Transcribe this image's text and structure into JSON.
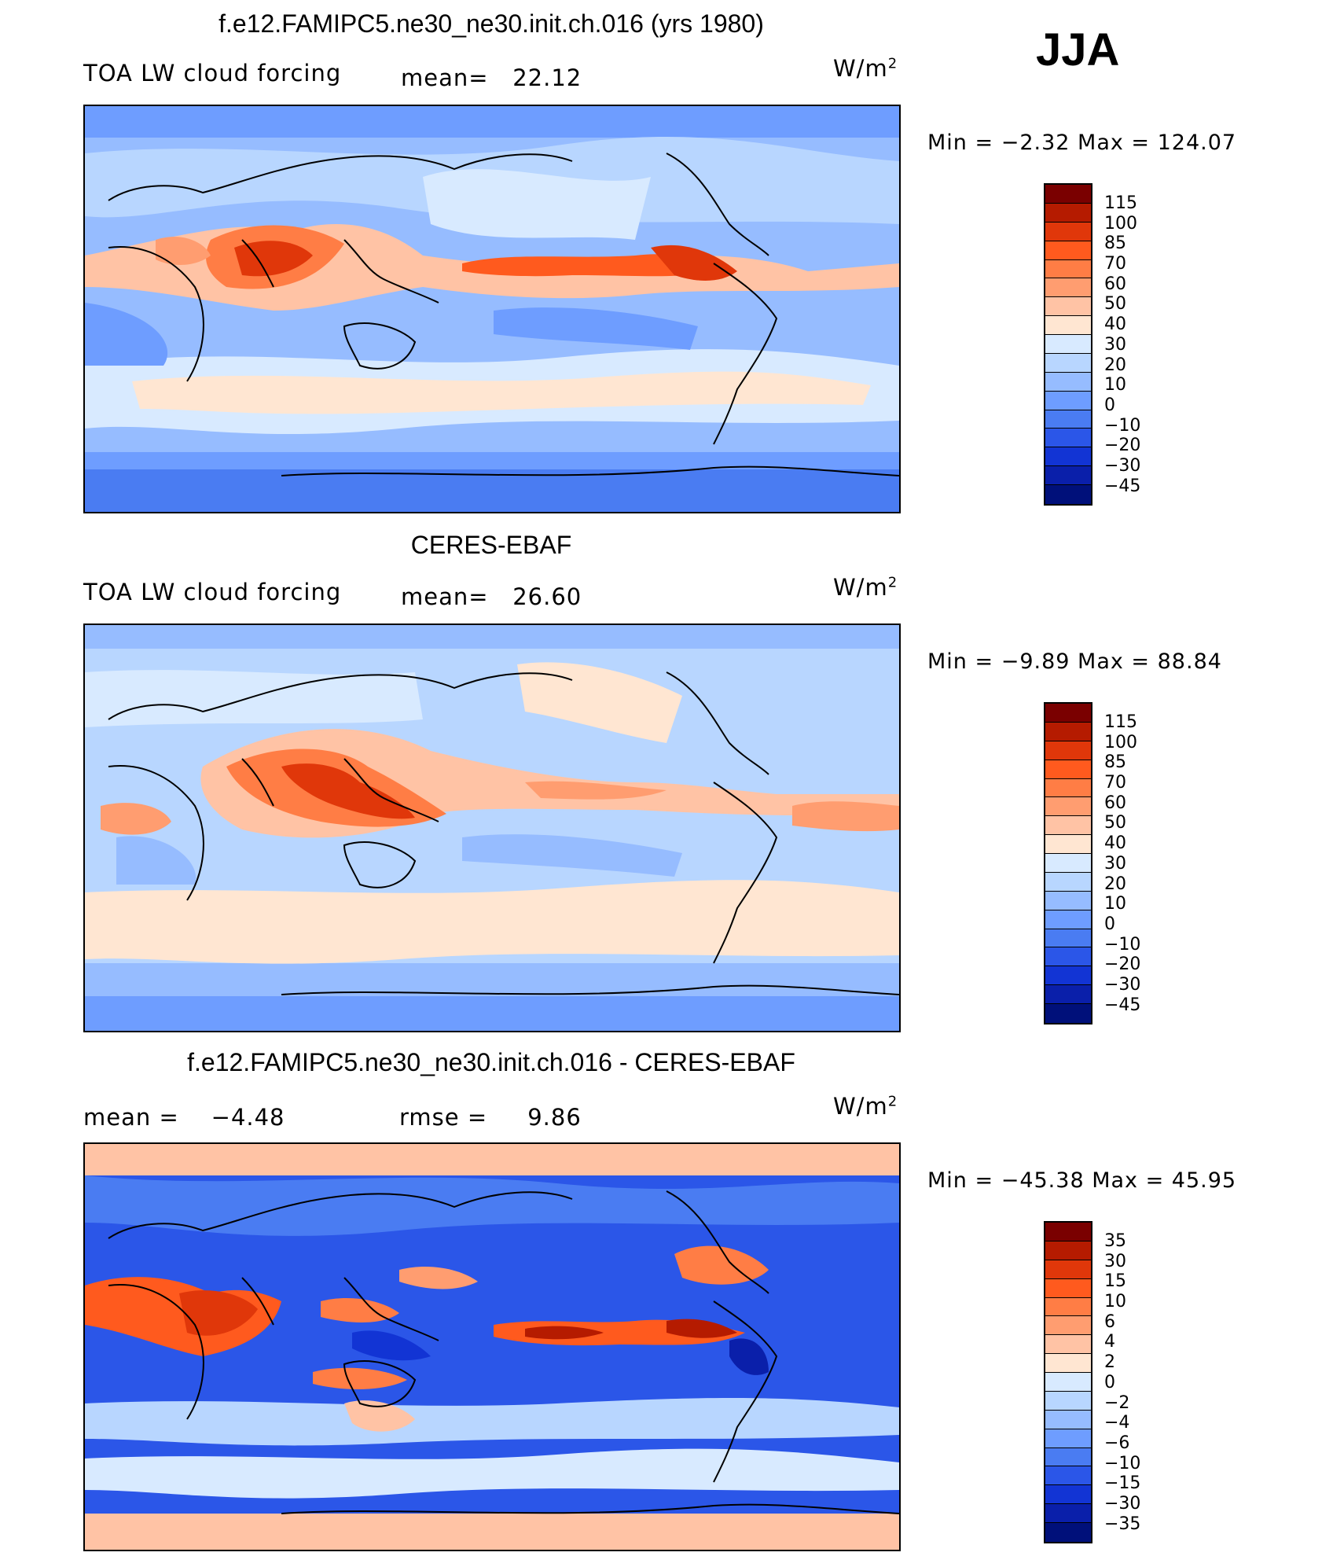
{
  "season": "JJA",
  "units": "W/m",
  "units_exp": "2",
  "palette_main": [
    "#7a0000",
    "#b51b00",
    "#e0370a",
    "#ff5a1e",
    "#ff7d45",
    "#ff9d70",
    "#ffc3a5",
    "#ffe6d2",
    "#d8eaff",
    "#b8d6ff",
    "#96bcff",
    "#6e9dff",
    "#4a7cf2",
    "#2b56e8",
    "#1234d4",
    "#0a1faa",
    "#00107a"
  ],
  "palette_diff": [
    "#7a0000",
    "#b51b00",
    "#e0370a",
    "#ff5a1e",
    "#ff7d45",
    "#ff9d70",
    "#ffc3a5",
    "#ffe6d2",
    "#d8eaff",
    "#b8d6ff",
    "#96bcff",
    "#6e9dff",
    "#4a7cf2",
    "#2b56e8",
    "#1234d4",
    "#0a1faa",
    "#00107a"
  ],
  "panels": [
    {
      "title": "f.e12.FAMIPC5.ne30_ne30.init.ch.016 (yrs 1980)",
      "variable": "TOA LW cloud forcing",
      "mean_label": "mean=",
      "mean_value": "22.12",
      "range": "Min  =    −2.32  Max  =  124.07",
      "levels": [
        "115",
        "100",
        "85",
        "70",
        "60",
        "50",
        "40",
        "30",
        "20",
        "10",
        "0",
        "−10",
        "−20",
        "−30",
        "−45"
      ]
    },
    {
      "title": "CERES-EBAF",
      "variable": "TOA LW cloud forcing",
      "mean_label": "mean=",
      "mean_value": "26.60",
      "range": "Min  =    −9.89  Max  =    88.84",
      "levels": [
        "115",
        "100",
        "85",
        "70",
        "60",
        "50",
        "40",
        "30",
        "20",
        "10",
        "0",
        "−10",
        "−20",
        "−30",
        "−45"
      ]
    },
    {
      "title": "f.e12.FAMIPC5.ne30_ne30.init.ch.016 - CERES-EBAF",
      "mean_label": "mean  =",
      "mean_value": "−4.48",
      "rmse_label": "rmse  =",
      "rmse_value": "9.86",
      "range": "Min  = −45.38  Max  =    45.95",
      "levels": [
        "35",
        "30",
        "15",
        "10",
        "6",
        "4",
        "2",
        "0",
        "−2",
        "−4",
        "−6",
        "−10",
        "−15",
        "−30",
        "−35"
      ]
    }
  ]
}
